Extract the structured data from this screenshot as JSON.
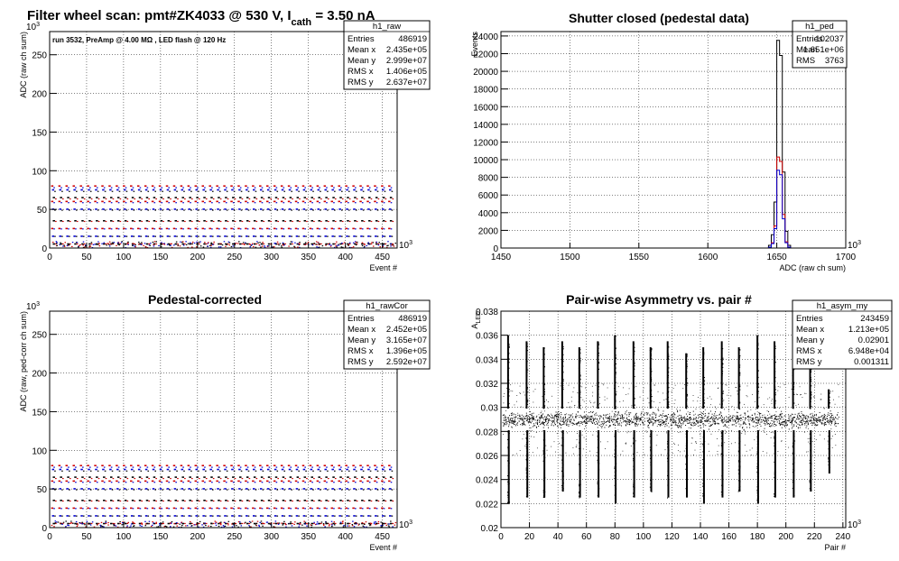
{
  "main_title": {
    "prefix": "Filter wheel scan: pmt#ZK4033 @   530 V, I",
    "sub": "cath",
    "suffix": " = 3.50 nA"
  },
  "chart_data": [
    {
      "type": "scatter",
      "title": "",
      "xlabel": "Event #",
      "ylabel": "ADC (raw ch sum)",
      "x_exponent": "10",
      "x_exp_power": "3",
      "y_exponent": "10",
      "y_exp_power": "3",
      "xlim": [
        0,
        470
      ],
      "ylim": [
        0,
        280
      ],
      "x_ticks": [
        0,
        50,
        100,
        150,
        200,
        250,
        300,
        350,
        400,
        450
      ],
      "y_ticks": [
        0,
        50,
        100,
        150,
        200,
        250
      ],
      "grid": true,
      "annotation": "run 3532, PreAmp @ 4.00 MΩ , LED flash @  120 Hz",
      "stats": {
        "name": "h1_raw",
        "rows": [
          [
            "Entries",
            "486919"
          ],
          [
            "Mean x",
            "2.435e+05"
          ],
          [
            "Mean y",
            "2.999e+07"
          ],
          [
            "RMS x",
            "1.406e+05"
          ],
          [
            "RMS y",
            "2.637e+07"
          ]
        ]
      },
      "levels": [
        80,
        75,
        65,
        60,
        50,
        35,
        25,
        15,
        5
      ],
      "cycle_period": 9.7
    },
    {
      "type": "bar",
      "title": "Shutter closed (pedestal data)",
      "xlabel": "ADC (raw ch sum)",
      "ylabel": "Events",
      "x_exponent": "10",
      "x_exp_power": "3",
      "xlim": [
        1450,
        1700
      ],
      "ylim": [
        0,
        24500
      ],
      "x_ticks": [
        1450,
        1500,
        1550,
        1600,
        1650,
        1700
      ],
      "y_ticks": [
        0,
        2000,
        4000,
        6000,
        8000,
        10000,
        12000,
        14000,
        16000,
        18000,
        20000,
        22000,
        24000
      ],
      "grid": true,
      "stats": {
        "name": "h1_ped",
        "rows": [
          [
            "Entries",
            "102037"
          ],
          [
            "Mean",
            "1.651e+06"
          ],
          [
            "RMS",
            "3763"
          ]
        ]
      },
      "series": [
        {
          "name": "",
          "color": "#000000",
          "x": [
            1640,
            1642,
            1644,
            1646,
            1648,
            1650,
            1652,
            1654,
            1656,
            1658,
            1660
          ],
          "values": [
            0,
            0,
            300,
            1500,
            5200,
            23500,
            21800,
            8600,
            1900,
            300,
            0
          ]
        },
        {
          "name": "",
          "color": "#d00000",
          "x": [
            1640,
            1642,
            1644,
            1646,
            1648,
            1650,
            1652,
            1654,
            1656,
            1658,
            1660
          ],
          "values": [
            0,
            0,
            100,
            600,
            2500,
            10300,
            9800,
            3800,
            700,
            100,
            0
          ]
        },
        {
          "name": "",
          "color": "#0000d0",
          "x": [
            1640,
            1642,
            1644,
            1646,
            1648,
            1650,
            1652,
            1654,
            1656,
            1658,
            1660
          ],
          "values": [
            0,
            0,
            100,
            500,
            2200,
            8800,
            8300,
            3300,
            600,
            100,
            0
          ]
        }
      ]
    },
    {
      "type": "scatter",
      "title": "Pedestal-corrected",
      "xlabel": "Event #",
      "ylabel": "ADC (raw, ped-corr ch sum)",
      "x_exponent": "10",
      "x_exp_power": "3",
      "y_exponent": "10",
      "y_exp_power": "3",
      "xlim": [
        0,
        470
      ],
      "ylim": [
        0,
        280
      ],
      "x_ticks": [
        0,
        50,
        100,
        150,
        200,
        250,
        300,
        350,
        400,
        450
      ],
      "y_ticks": [
        0,
        50,
        100,
        150,
        200,
        250
      ],
      "grid": true,
      "stats": {
        "name": "h1_rawCor",
        "rows": [
          [
            "Entries",
            "486919"
          ],
          [
            "Mean x",
            "2.452e+05"
          ],
          [
            "Mean y",
            "3.165e+07"
          ],
          [
            "RMS x",
            "1.396e+05"
          ],
          [
            "RMS y",
            "2.592e+07"
          ]
        ]
      },
      "levels": [
        80,
        75,
        65,
        60,
        50,
        35,
        25,
        15,
        5
      ],
      "cycle_period": 9.7
    },
    {
      "type": "scatter",
      "title": "Pair-wise Asymmetry vs. pair #",
      "xlabel": "Pair #",
      "ylabel": "A",
      "ylabel_sub": "LED",
      "x_exponent": "10",
      "x_exp_power": "3",
      "xlim": [
        0,
        242
      ],
      "ylim": [
        0.02,
        0.038
      ],
      "x_ticks": [
        0,
        20,
        40,
        60,
        80,
        100,
        120,
        140,
        160,
        180,
        200,
        220,
        240
      ],
      "y_ticks": [
        0.02,
        0.022,
        0.024,
        0.026,
        0.028,
        0.03,
        0.032,
        0.034,
        0.036,
        0.038
      ],
      "y_tick_labels": [
        "0.02",
        "0.022",
        "0.024",
        "0.026",
        "0.028",
        "0.03",
        "0.032",
        "0.034",
        "0.036",
        "0.038"
      ],
      "grid": true,
      "stats": {
        "name": "h1_asym_my",
        "rows": [
          [
            "Entries",
            "243459"
          ],
          [
            "Mean x",
            "1.213e+05"
          ],
          [
            "Mean y",
            "0.02901"
          ],
          [
            "RMS x",
            "6.948e+04"
          ],
          [
            "RMS y",
            "0.001311"
          ]
        ]
      },
      "band_center": 0.029,
      "band_halfwidth": 0.0009,
      "spikes_x": [
        5,
        18,
        30,
        43,
        55,
        68,
        80,
        93,
        105,
        117,
        130,
        142,
        155,
        167,
        180,
        192,
        205,
        217,
        230
      ],
      "spikes_up": [
        0.036,
        0.0355,
        0.035,
        0.0355,
        0.035,
        0.0355,
        0.036,
        0.0355,
        0.035,
        0.0355,
        0.0345,
        0.035,
        0.0355,
        0.035,
        0.036,
        0.0355,
        0.035,
        0.0345,
        0.0315
      ],
      "spikes_down": [
        0.022,
        0.0225,
        0.0225,
        0.023,
        0.0225,
        0.0225,
        0.022,
        0.0225,
        0.023,
        0.0225,
        0.0225,
        0.022,
        0.0225,
        0.023,
        0.022,
        0.0225,
        0.0225,
        0.023,
        0.0245
      ]
    }
  ]
}
